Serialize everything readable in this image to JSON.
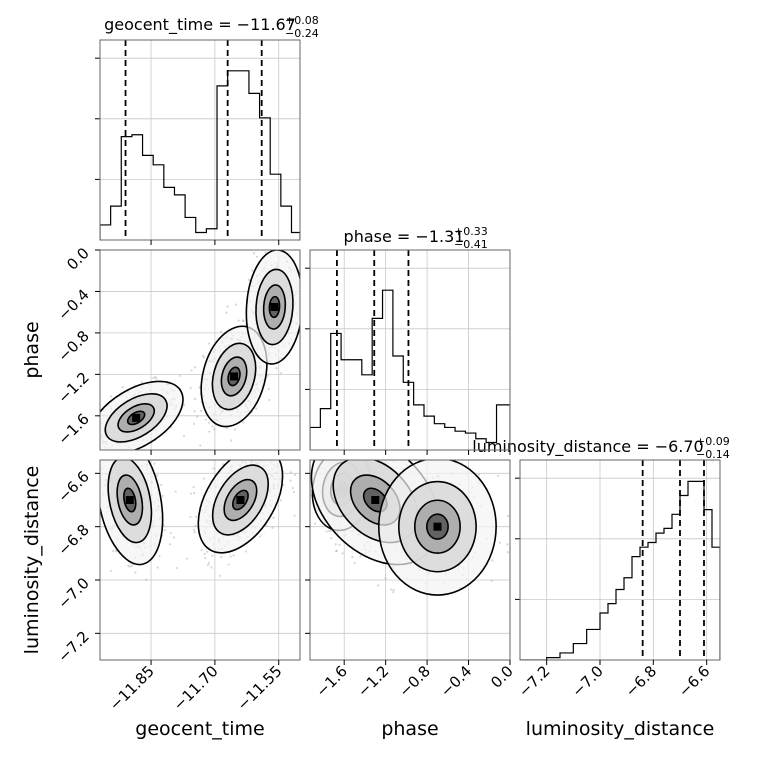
{
  "chart_data": {
    "type": "corner",
    "grid": true,
    "parameters": [
      {
        "name": "geocent_time",
        "title_main": "geocent_time = −11.67",
        "title_plus": "+0.08",
        "title_minus": "−0.24",
        "range": [
          -11.97,
          -11.5
        ],
        "ticks": [
          -11.85,
          -11.7,
          -11.55
        ],
        "tick_labels": [
          "−11.85",
          "−11.70",
          "−11.55"
        ],
        "quantiles": [
          -11.91,
          -11.67,
          -11.59
        ],
        "hist_bin_edges": [
          -11.97,
          -11.945,
          -11.92,
          -11.895,
          -11.87,
          -11.845,
          -11.82,
          -11.795,
          -11.77,
          -11.745,
          -11.72,
          -11.695,
          -11.67,
          -11.645,
          -11.62,
          -11.595,
          -11.57,
          -11.545,
          -11.52,
          -11.5
        ],
        "hist_counts": [
          8,
          18,
          55,
          56,
          45,
          40,
          28,
          24,
          12,
          4,
          6,
          82,
          90,
          90,
          78,
          65,
          35,
          18,
          4
        ],
        "hist_max": 100
      },
      {
        "name": "phase",
        "title_main": "phase = −1.31",
        "title_plus": "+0.33",
        "title_minus": "−0.41",
        "range": [
          -1.93,
          0.0
        ],
        "ticks": [
          -1.6,
          -1.2,
          -0.8,
          -0.4,
          0.0
        ],
        "tick_labels": [
          "−1.6",
          "−1.2",
          "−0.8",
          "−0.4",
          "0.0"
        ],
        "quantiles": [
          -1.67,
          -1.31,
          -0.98
        ],
        "hist_bin_edges": [
          -1.93,
          -1.83,
          -1.73,
          -1.63,
          -1.53,
          -1.43,
          -1.33,
          -1.23,
          -1.13,
          -1.03,
          -0.93,
          -0.83,
          -0.73,
          -0.63,
          -0.53,
          -0.43,
          -0.33,
          -0.23,
          -0.13,
          0.0
        ],
        "hist_counts": [
          12,
          22,
          62,
          48,
          48,
          40,
          70,
          85,
          50,
          36,
          24,
          18,
          14,
          12,
          10,
          9,
          6,
          4,
          24
        ],
        "hist_max": 100
      },
      {
        "name": "luminosity_distance",
        "title_main": "luminosity_distance = −6.70",
        "title_plus": "+0.09",
        "title_minus": "−0.14",
        "range": [
          -7.3,
          -6.55
        ],
        "ticks": [
          -7.2,
          -7.0,
          -6.8,
          -6.6
        ],
        "tick_labels": [
          "−7.2",
          "−7.0",
          "−6.8",
          "−6.6"
        ],
        "quantiles": [
          -6.84,
          -6.7,
          -6.61
        ],
        "hist_bin_edges": [
          -7.3,
          -7.2,
          -7.15,
          -7.1,
          -7.05,
          -7.0,
          -6.97,
          -6.94,
          -6.91,
          -6.88,
          -6.85,
          -6.82,
          -6.79,
          -6.76,
          -6.73,
          -6.7,
          -6.67,
          -6.64,
          -6.61,
          -6.58,
          -6.55
        ],
        "hist_counts": [
          0,
          1,
          3,
          7,
          13,
          20,
          24,
          30,
          35,
          44,
          48,
          50,
          54,
          56,
          62,
          70,
          76,
          76,
          64,
          48
        ],
        "hist_max": 80
      }
    ],
    "axis_labels": [
      "geocent_time",
      "phase",
      "luminosity_distance"
    ],
    "pairs": [
      {
        "x": 0,
        "y": 1,
        "modes": [
          {
            "cx": -11.885,
            "cy": -1.62,
            "sx": 0.05,
            "sy": 0.16,
            "rho": 0.5,
            "n": 360
          },
          {
            "cx": -11.655,
            "cy": -1.22,
            "sx": 0.035,
            "sy": 0.22,
            "rho": 0.25,
            "n": 520
          },
          {
            "cx": -11.56,
            "cy": -0.55,
            "sx": 0.03,
            "sy": 0.25,
            "rho": 0.1,
            "n": 220
          }
        ],
        "contour_scales": [
          2.2,
          1.45,
          0.85,
          0.4
        ]
      },
      {
        "x": 0,
        "y": 2,
        "modes": [
          {
            "cx": -11.9,
            "cy": -6.7,
            "sx": 0.035,
            "sy": 0.11,
            "rho": -0.3,
            "n": 380
          },
          {
            "cx": -11.64,
            "cy": -6.7,
            "sx": 0.045,
            "sy": 0.09,
            "rho": 0.45,
            "n": 560
          }
        ],
        "contour_scales": [
          2.2,
          1.45,
          0.85,
          0.4
        ]
      },
      {
        "x": 1,
        "y": 2,
        "modes": [
          {
            "cx": -1.62,
            "cy": -6.66,
            "sx": 0.13,
            "sy": 0.07,
            "rho": 0.1,
            "n": 300
          },
          {
            "cx": -1.3,
            "cy": -6.7,
            "sx": 0.28,
            "sy": 0.11,
            "rho": -0.35,
            "n": 520
          },
          {
            "cx": -0.7,
            "cy": -6.8,
            "sx": 0.3,
            "sy": 0.1,
            "rho": 0.0,
            "n": 220
          }
        ],
        "contour_scales": [
          2.2,
          1.45,
          0.85,
          0.4
        ]
      }
    ]
  }
}
